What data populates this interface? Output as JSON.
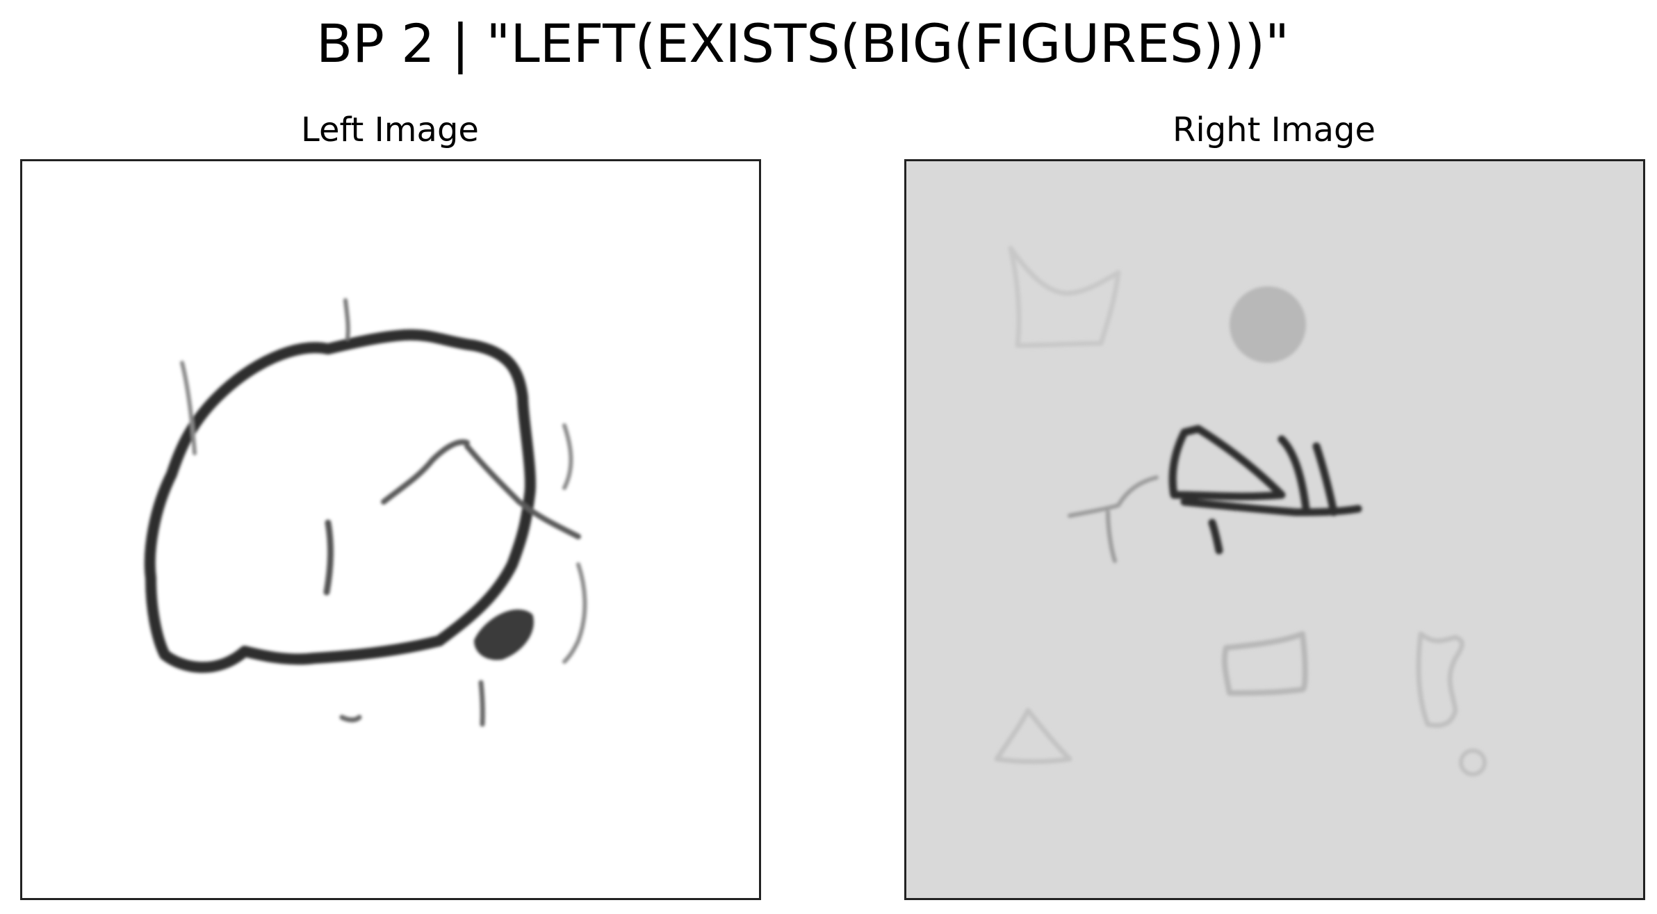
{
  "figure": {
    "title": "BP 2 | \"LEFT(EXISTS(BIG(FIGURES)))\""
  },
  "panels": [
    {
      "title": "Left Image",
      "background": "#ffffff",
      "content": "large hand-drawn loop figure"
    },
    {
      "title": "Right Image",
      "background": "#d9d9d9",
      "content": "several small hand-drawn figures"
    }
  ],
  "colors": {
    "ink": "#2e2e2e",
    "faint_ink": "#bdbdbd",
    "frame": "#222222"
  }
}
